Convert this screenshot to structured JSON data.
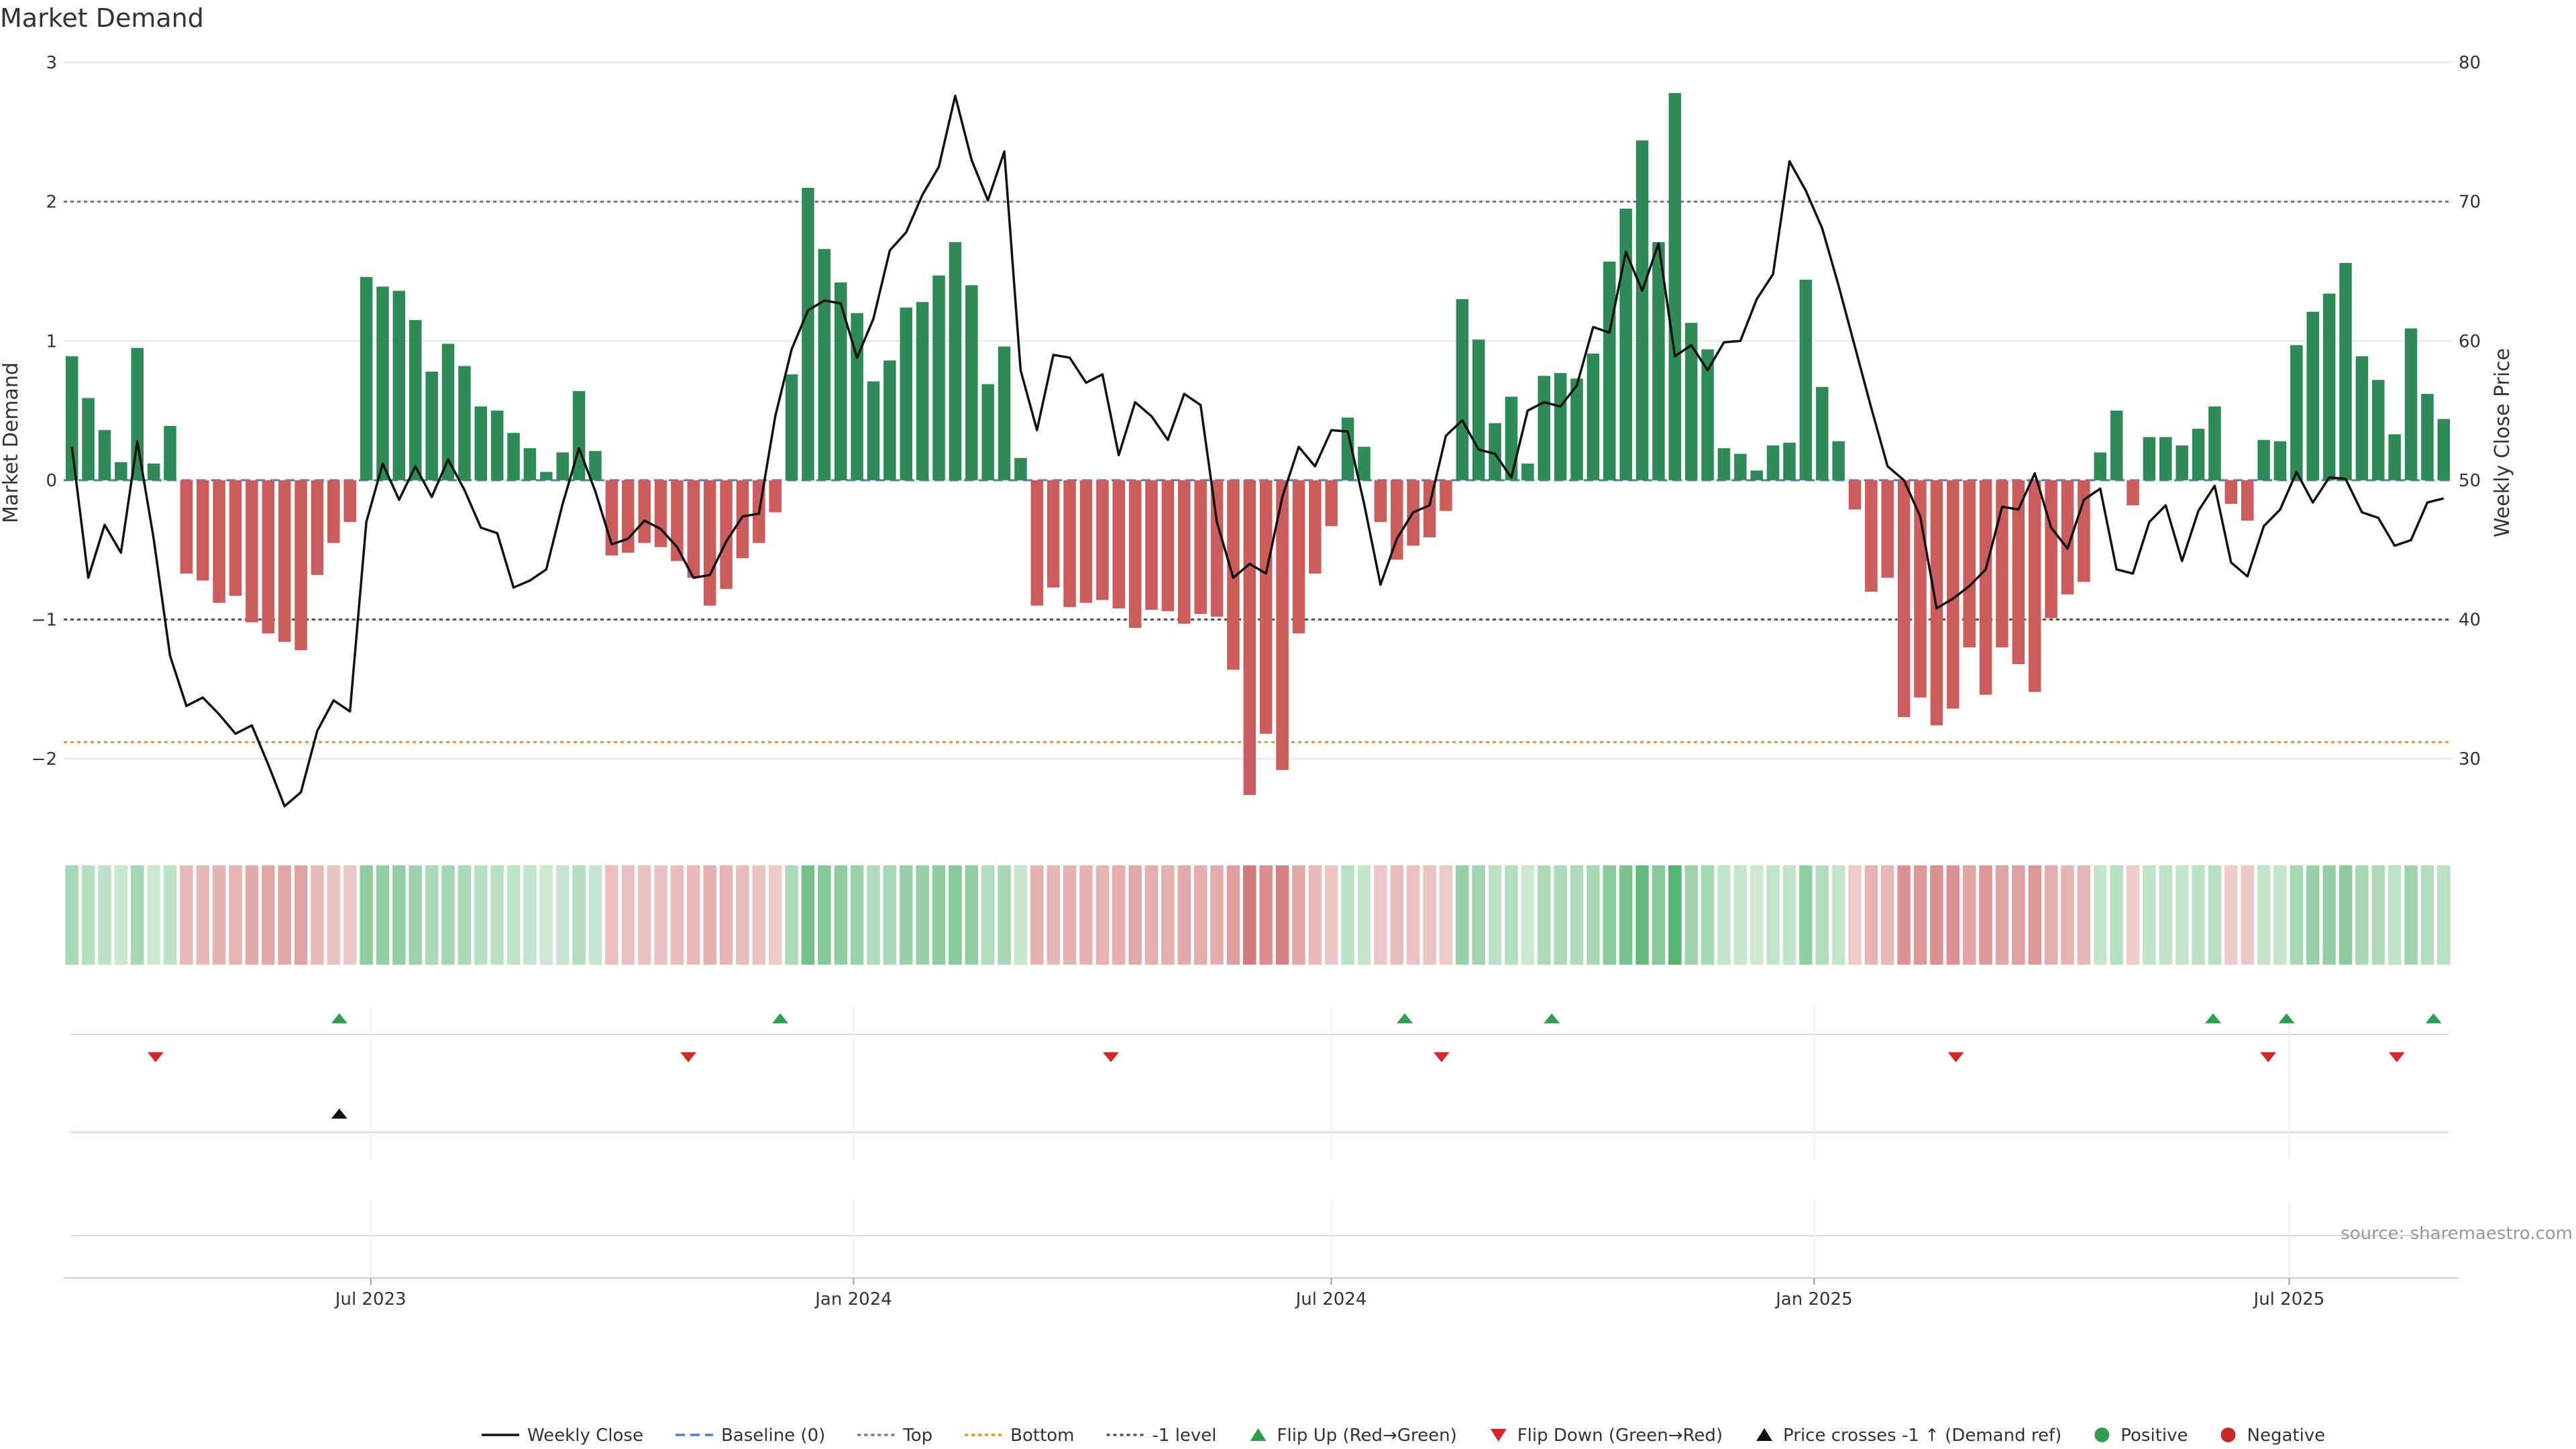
{
  "chart_data": {
    "type": "bar",
    "title": "Market Demand",
    "ylabel_left": "Market Demand",
    "ylabel_right": "Weekly Close Price",
    "ylim_left": [
      -2.5,
      3
    ],
    "ylim_right": [
      25,
      80
    ],
    "yticks_left": [
      -2,
      -1,
      0,
      1,
      2,
      3
    ],
    "ytick_labels_left": [
      "−2",
      "−1",
      "0",
      "1",
      "2",
      "3"
    ],
    "yticks_right": [
      30,
      40,
      50,
      60,
      70,
      80
    ],
    "ytick_labels_right": [
      "30",
      "40",
      "50",
      "60",
      "70",
      "80"
    ],
    "x_start": "2023-03-06",
    "x_end": "2025-09-01",
    "xticks": [
      {
        "date": "2023-07-01",
        "label": "Jul 2023"
      },
      {
        "date": "2024-01-01",
        "label": "Jan 2024"
      },
      {
        "date": "2024-07-01",
        "label": "Jul 2024"
      },
      {
        "date": "2025-01-01",
        "label": "Jan 2025"
      },
      {
        "date": "2025-07-01",
        "label": "Jul 2025"
      }
    ],
    "reference_lines": [
      {
        "name": "Top",
        "value": 2,
        "color": "#7b68c8",
        "style": "dotted"
      },
      {
        "name": "Bottom",
        "value": -1.88,
        "color": "#f28c28",
        "style": "dotted"
      },
      {
        "name": "-1 level",
        "value": -1,
        "color": "#555555",
        "style": "dotted"
      },
      {
        "name": "Baseline (0)",
        "value": 0,
        "color": "#4a7fd0",
        "style": "dashed"
      }
    ],
    "series": [
      {
        "name": "Market Demand",
        "kind": "bar",
        "values": [
          0.89,
          0.59,
          0.36,
          0.13,
          0.95,
          0.12,
          0.39,
          -0.67,
          -0.72,
          -0.88,
          -0.83,
          -1.02,
          -1.1,
          -1.16,
          -1.22,
          -0.68,
          -0.45,
          -0.3,
          1.46,
          1.39,
          1.36,
          1.15,
          0.78,
          0.98,
          0.82,
          0.53,
          0.5,
          0.34,
          0.23,
          0.06,
          0.2,
          0.64,
          0.21,
          -0.54,
          -0.52,
          -0.45,
          -0.48,
          -0.58,
          -0.7,
          -0.9,
          -0.78,
          -0.56,
          -0.45,
          -0.23,
          0.76,
          2.1,
          1.66,
          1.42,
          1.2,
          0.71,
          0.86,
          1.24,
          1.28,
          1.47,
          1.71,
          1.4,
          0.69,
          0.96,
          0.16,
          -0.9,
          -0.77,
          -0.91,
          -0.88,
          -0.86,
          -0.92,
          -1.06,
          -0.93,
          -0.94,
          -1.03,
          -0.96,
          -0.98,
          -1.36,
          -2.26,
          -1.82,
          -2.08,
          -1.1,
          -0.67,
          -0.33,
          0.45,
          0.24,
          -0.3,
          -0.57,
          -0.47,
          -0.41,
          -0.22,
          1.3,
          1.01,
          0.41,
          0.6,
          0.12,
          0.75,
          0.77,
          0.73,
          0.91,
          1.57,
          1.95,
          2.44,
          1.71,
          2.78,
          1.13,
          0.94,
          0.23,
          0.19,
          0.07,
          0.25,
          0.27,
          1.44,
          0.67,
          0.28,
          -0.21,
          -0.8,
          -0.7,
          -1.7,
          -1.56,
          -1.76,
          -1.64,
          -1.2,
          -1.54,
          -1.2,
          -1.32,
          -1.52,
          -0.99,
          -0.82,
          -0.73,
          0.2,
          0.5,
          -0.18,
          0.31,
          0.31,
          0.25,
          0.37,
          0.53,
          -0.17,
          -0.29,
          0.29,
          0.28,
          0.97,
          1.21,
          1.34,
          1.56,
          0.89,
          0.72,
          0.33,
          1.09,
          0.62,
          0.44
        ]
      },
      {
        "name": "Weekly Close",
        "kind": "line",
        "axis": "right",
        "color": "#111111",
        "values": [
          52.4,
          43.0,
          46.8,
          44.8,
          52.8,
          45.8,
          37.4,
          33.8,
          34.4,
          33.2,
          31.8,
          32.4,
          29.6,
          26.6,
          27.6,
          32.0,
          34.2,
          33.4,
          47.0,
          51.2,
          48.6,
          51.0,
          48.8,
          51.5,
          49.3,
          46.6,
          46.2,
          42.3,
          42.8,
          43.6,
          48.3,
          52.3,
          49.2,
          45.4,
          45.8,
          47.1,
          46.5,
          45.2,
          43.0,
          43.2,
          45.6,
          47.4,
          47.6,
          54.6,
          59.4,
          62.2,
          62.9,
          62.7,
          58.8,
          61.6,
          66.5,
          67.8,
          70.5,
          72.5,
          77.6,
          73.0,
          70.1,
          73.6,
          57.9,
          53.6,
          59.0,
          58.8,
          57.0,
          57.6,
          51.8,
          55.6,
          54.6,
          52.9,
          56.2,
          55.4,
          47.0,
          43.0,
          44.0,
          43.3,
          48.8,
          52.4,
          51.0,
          53.6,
          53.5,
          48.3,
          42.5,
          45.8,
          47.7,
          48.2,
          53.2,
          54.3,
          52.2,
          51.9,
          50.2,
          55.0,
          55.6,
          55.3,
          56.8,
          61.0,
          60.6,
          66.4,
          63.6,
          67.0,
          58.9,
          59.7,
          57.9,
          59.9,
          60.0,
          63.0,
          64.8,
          72.9,
          70.8,
          68.1,
          64.0,
          59.6,
          55.2,
          51.0,
          50.0,
          47.4,
          40.8,
          41.5,
          42.4,
          43.6,
          48.1,
          47.9,
          50.5,
          46.6,
          45.1,
          48.6,
          49.4,
          43.6,
          43.3,
          47.0,
          48.2,
          44.2,
          47.8,
          49.6,
          44.1,
          43.1,
          46.7,
          47.9,
          50.6,
          48.4,
          50.2,
          50.1,
          47.7,
          47.3,
          45.3,
          45.7,
          48.4,
          48.7
        ]
      }
    ],
    "strip": {
      "description_colors": {
        "positive": "#3aa859",
        "negative": "#c54f4f"
      }
    },
    "markers": {
      "flip_up_dates": [
        "2023-06-19",
        "2023-12-04",
        "2024-07-29",
        "2024-09-23",
        "2025-06-02",
        "2025-06-30",
        "2025-08-25"
      ],
      "flip_down_dates": [
        "2023-04-10",
        "2023-10-30",
        "2024-04-08",
        "2024-08-12",
        "2025-02-24",
        "2025-06-23",
        "2025-08-11"
      ],
      "price_cross_dates": [
        "2023-06-19"
      ]
    },
    "legend": {
      "placement": "bottom",
      "entries": [
        {
          "label": "Weekly Close",
          "symbol": "line",
          "color": "#111111"
        },
        {
          "label": "Baseline (0)",
          "symbol": "dashed",
          "color": "#4a7fd0"
        },
        {
          "label": "Top",
          "symbol": "dotted",
          "color": "#7b68c8"
        },
        {
          "label": "Bottom",
          "symbol": "dotted",
          "color": "#f28c28"
        },
        {
          "label": "-1 level",
          "symbol": "dotted",
          "color": "#555555"
        },
        {
          "label": "Flip Up (Red→Green)",
          "symbol": "triangle-up",
          "color": "#2e9e4f"
        },
        {
          "label": "Flip Down (Green→Red)",
          "symbol": "triangle-down",
          "color": "#d62728"
        },
        {
          "label": "Price crosses -1 ↑ (Demand ref)",
          "symbol": "triangle-up",
          "color": "#111111"
        },
        {
          "label": "Positive",
          "symbol": "circle",
          "color": "#2e9e4f"
        },
        {
          "label": "Negative",
          "symbol": "circle",
          "color": "#c62828"
        }
      ]
    },
    "colors": {
      "positive_bar": "#2e8b57",
      "negative_bar": "#cd5c5c",
      "grid": "#e6e6e6"
    },
    "source": "source: sharemaestro.com"
  }
}
